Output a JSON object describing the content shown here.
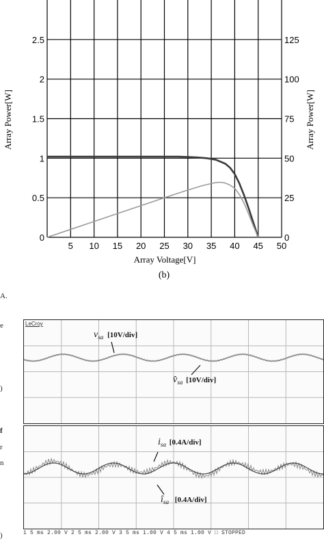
{
  "chart_data": {
    "type": "line",
    "caption": "(b)",
    "xlabel": "Array Voltage[V]",
    "ylabel_left": "Array Power[W]",
    "ylabel_right": "Array Power[W]",
    "xlim": [
      0,
      50
    ],
    "ylim_left": [
      0,
      3
    ],
    "ylim_right": [
      0,
      150
    ],
    "x_ticks": [
      "0",
      "5",
      "10",
      "15",
      "20",
      "25",
      "30",
      "35",
      "40",
      "45",
      "50"
    ],
    "y_left_ticks": [
      "0",
      "0.5",
      "1",
      "1.5",
      "2",
      "2.5"
    ],
    "y_right_ticks": [
      "0",
      "25",
      "50",
      "75",
      "100",
      "125"
    ],
    "grid": true,
    "series": [
      {
        "color": "#3a3a3a",
        "x": [
          0,
          5,
          10,
          15,
          20,
          25,
          28,
          30,
          32,
          34,
          36,
          38,
          39,
          40,
          41,
          42,
          43,
          44,
          45
        ],
        "y": [
          1.02,
          1.02,
          1.02,
          1.02,
          1.02,
          1.02,
          1.02,
          1.015,
          1.01,
          1.0,
          0.98,
          0.93,
          0.88,
          0.8,
          0.68,
          0.53,
          0.36,
          0.18,
          0.0
        ]
      },
      {
        "color": "#9a9a9a",
        "x": [
          0,
          5,
          10,
          15,
          20,
          25,
          30,
          33,
          35,
          36,
          37,
          38,
          39,
          40,
          41,
          42,
          43,
          44,
          45
        ],
        "y": [
          0,
          5,
          10,
          15,
          20,
          25,
          29.9,
          32.6,
          34,
          34.6,
          34.8,
          34.3,
          33,
          31,
          27,
          21.5,
          14.5,
          7,
          0
        ]
      }
    ]
  },
  "scope": {
    "logo": "LeCroy",
    "panel1": {
      "label_v": "v",
      "label_v_sub": "sa",
      "label_v_scale": "[10V/div]",
      "label_vhat": "v̂",
      "label_vhat_sub": "sa",
      "label_vhat_scale": "[10V/div]"
    },
    "panel2": {
      "label_i": "i",
      "label_i_sub": "sa",
      "label_i_scale": "[0.4A/div]",
      "label_ihat": "î",
      "label_ihat_sub": "sa",
      "label_ihat_scale": "[0.4A/div]"
    },
    "status": "1  5 ms 2.00 V  2  5 ms 2.00 V  3  5 ms 1.00 V  4  5 ms 1.00 V  □  STOPPED"
  },
  "fragments": {
    "a": "A.",
    "e": "e",
    "p1": ")",
    "f": "f",
    "r": "r",
    "n": "n",
    "p2": ")"
  }
}
